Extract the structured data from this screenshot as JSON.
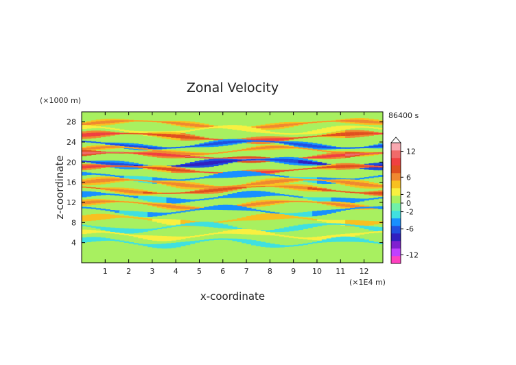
{
  "chart_data": {
    "type": "heatmap",
    "title": "Zonal Velocity",
    "xlabel": "x-coordinate",
    "ylabel": "z-coordinate",
    "x_units": "(×1E4 m)",
    "y_units": "(×1000 m)",
    "time_label": "86400 s",
    "xlim": [
      0,
      12.8
    ],
    "ylim": [
      0,
      30
    ],
    "x_ticks": [
      1,
      2,
      3,
      4,
      5,
      6,
      7,
      8,
      9,
      10,
      11,
      12
    ],
    "y_ticks": [
      4,
      8,
      12,
      16,
      20,
      24,
      28
    ],
    "grid": false,
    "colorbar": {
      "levels": [
        -14,
        -12,
        -10,
        -8,
        -6,
        -4,
        -2,
        -1,
        0,
        1,
        2,
        4,
        6,
        8,
        10,
        12,
        14
      ],
      "colors": [
        "#ff40c0",
        "#c040ff",
        "#8020d0",
        "#3020c0",
        "#2050e0",
        "#1890ff",
        "#40e0e0",
        "#70f0a8",
        "#a8f060",
        "#f8f040",
        "#f8c020",
        "#f08830",
        "#e05020",
        "#f04040",
        "#f06a6a",
        "#f8a8b0"
      ],
      "tick_labels": [
        "12",
        "6",
        "2",
        "0",
        "-2",
        "-6",
        "-12"
      ],
      "tick_values": [
        12,
        6,
        2,
        0,
        -2,
        -6,
        -12
      ]
    },
    "bands": [
      {
        "z": 27.5,
        "value": 4,
        "amp": 0.5,
        "wave": 0.7,
        "phase": 0.0
      },
      {
        "z": 26.3,
        "value": 2,
        "amp": 0.4,
        "wave": 1.1,
        "phase": 1.2
      },
      {
        "z": 25.0,
        "value": 6,
        "amp": 0.6,
        "wave": 0.6,
        "phase": 0.5
      },
      {
        "z": 23.5,
        "value": -4,
        "amp": 0.5,
        "wave": 0.8,
        "phase": 2.0
      },
      {
        "z": 22.3,
        "value": 4,
        "amp": 0.4,
        "wave": 0.9,
        "phase": 0.3
      },
      {
        "z": 21.2,
        "value": 8,
        "amp": 0.5,
        "wave": 0.5,
        "phase": 1.0
      },
      {
        "z": 19.8,
        "value": -5,
        "amp": 0.6,
        "wave": 0.7,
        "phase": 2.5
      },
      {
        "z": 18.5,
        "value": 6,
        "amp": 0.5,
        "wave": 0.6,
        "phase": 0.8
      },
      {
        "z": 17.0,
        "value": -3,
        "amp": 0.5,
        "wave": 0.9,
        "phase": 1.5
      },
      {
        "z": 15.8,
        "value": 4,
        "amp": 0.6,
        "wave": 0.8,
        "phase": 0.2
      },
      {
        "z": 14.5,
        "value": 5,
        "amp": 0.5,
        "wave": 0.7,
        "phase": 2.2
      },
      {
        "z": 13.0,
        "value": -3,
        "amp": 0.5,
        "wave": 0.9,
        "phase": 1.0
      },
      {
        "z": 11.5,
        "value": 4,
        "amp": 0.5,
        "wave": 0.8,
        "phase": 0.6
      },
      {
        "z": 10.3,
        "value": -3,
        "amp": 0.4,
        "wave": 1.0,
        "phase": 1.8
      },
      {
        "z": 8.5,
        "value": 3,
        "amp": 0.5,
        "wave": 0.9,
        "phase": 0.4
      },
      {
        "z": 7.0,
        "value": -2,
        "amp": 0.4,
        "wave": 1.1,
        "phase": 2.4
      },
      {
        "z": 5.5,
        "value": 2,
        "amp": 0.4,
        "wave": 1.0,
        "phase": 1.1
      },
      {
        "z": 4.0,
        "value": -2,
        "amp": 0.4,
        "wave": 1.2,
        "phase": 0.7
      },
      {
        "z": 2.0,
        "value": 1,
        "amp": 0.4,
        "wave": 1.0,
        "phase": 1.6
      }
    ]
  }
}
